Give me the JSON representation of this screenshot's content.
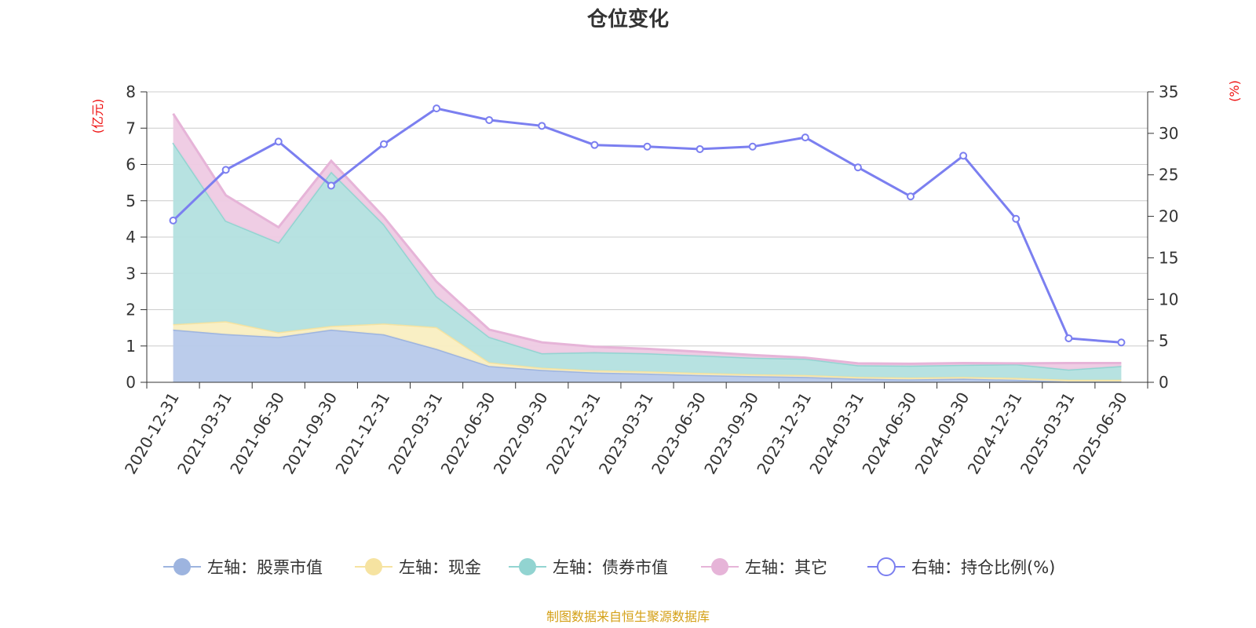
{
  "chart_data": {
    "type": "area",
    "title": "仓位变化",
    "left_axis_unit": "(亿元)",
    "right_axis_unit": "(%)",
    "left_ylim": [
      0,
      8
    ],
    "left_ticks": [
      "0",
      "1",
      "2",
      "3",
      "4",
      "5",
      "6",
      "7",
      "8"
    ],
    "right_ylim": [
      0,
      35
    ],
    "right_ticks": [
      "0",
      "5",
      "10",
      "15",
      "20",
      "25",
      "30",
      "35"
    ],
    "x": [
      "2020-12-31",
      "2021-03-31",
      "2021-06-30",
      "2021-09-30",
      "2021-12-31",
      "2022-03-31",
      "2022-06-30",
      "2022-09-30",
      "2022-12-31",
      "2023-03-31",
      "2023-06-30",
      "2023-09-30",
      "2023-12-31",
      "2024-03-31",
      "2024-06-30",
      "2024-09-30",
      "2024-12-31",
      "2025-03-31",
      "2025-06-30"
    ],
    "stacked": true,
    "grid": true,
    "legend_position": "bottom",
    "series": [
      {
        "name": "左轴：股票市值",
        "axis": "left",
        "color": "#9db4df",
        "fill": "#b7c9ea",
        "values": [
          1.45,
          1.33,
          1.25,
          1.45,
          1.32,
          0.92,
          0.45,
          0.34,
          0.27,
          0.24,
          0.2,
          0.17,
          0.15,
          0.1,
          0.08,
          0.1,
          0.07,
          0.02,
          0.02
        ]
      },
      {
        "name": "左轴：现金",
        "axis": "left",
        "color": "#f6e3a1",
        "fill": "#f9eec1",
        "values": [
          0.15,
          0.35,
          0.13,
          0.1,
          0.3,
          0.6,
          0.1,
          0.06,
          0.06,
          0.06,
          0.06,
          0.05,
          0.05,
          0.05,
          0.05,
          0.05,
          0.05,
          0.05,
          0.05
        ]
      },
      {
        "name": "左轴：债券市值",
        "axis": "left",
        "color": "#92d4d1",
        "fill": "#b3e0df",
        "values": [
          5.0,
          2.77,
          2.47,
          4.25,
          2.73,
          0.85,
          0.7,
          0.4,
          0.5,
          0.5,
          0.48,
          0.46,
          0.45,
          0.32,
          0.33,
          0.33,
          0.38,
          0.28,
          0.38
        ]
      },
      {
        "name": "左轴：其它",
        "axis": "left",
        "color": "#e6b4d8",
        "fill": "#eecae3",
        "values": [
          0.8,
          0.7,
          0.42,
          0.3,
          0.2,
          0.4,
          0.2,
          0.3,
          0.15,
          0.12,
          0.1,
          0.07,
          0.03,
          0.05,
          0.05,
          0.05,
          0.02,
          0.18,
          0.08
        ]
      },
      {
        "name": "右轴：持仓比例(%)",
        "axis": "right",
        "type": "line",
        "color": "#7b7ff0",
        "values": [
          19.5,
          25.6,
          29.0,
          23.7,
          28.7,
          33.0,
          31.6,
          30.9,
          28.6,
          28.4,
          28.1,
          28.4,
          29.5,
          25.9,
          22.4,
          27.3,
          19.7,
          5.3,
          4.8
        ]
      }
    ],
    "source_note": "制图数据来自恒生聚源数据库"
  }
}
